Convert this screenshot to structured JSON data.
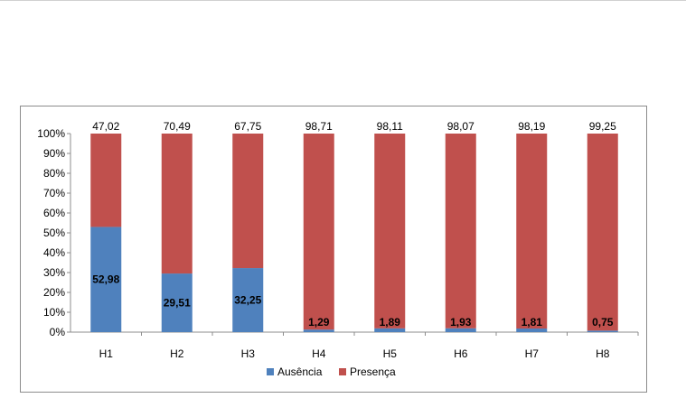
{
  "chart_data": {
    "type": "bar",
    "stacked": true,
    "percent": true,
    "categories": [
      "H1",
      "H2",
      "H3",
      "H4",
      "H5",
      "H6",
      "H7",
      "H8"
    ],
    "series": [
      {
        "name": "Ausência",
        "color": "#4f81bd",
        "values": [
          52.98,
          29.51,
          32.25,
          1.29,
          1.89,
          1.93,
          1.81,
          0.75
        ],
        "labels": [
          "52,98",
          "29,51",
          "32,25",
          "1,29",
          "1,89",
          "1,93",
          "1,81",
          "0,75"
        ]
      },
      {
        "name": "Presença",
        "color": "#c0504d",
        "values": [
          47.02,
          70.49,
          67.75,
          98.71,
          98.11,
          98.07,
          98.19,
          99.25
        ],
        "labels": [
          "47,02",
          "70,49",
          "67,75",
          "98,71",
          "98,11",
          "98,07",
          "98,19",
          "99,25"
        ]
      }
    ],
    "ylim": [
      0,
      100
    ],
    "yticks": [
      "0%",
      "10%",
      "20%",
      "30%",
      "40%",
      "50%",
      "60%",
      "70%",
      "80%",
      "90%",
      "100%"
    ],
    "grid": false,
    "legend": "bottom"
  }
}
